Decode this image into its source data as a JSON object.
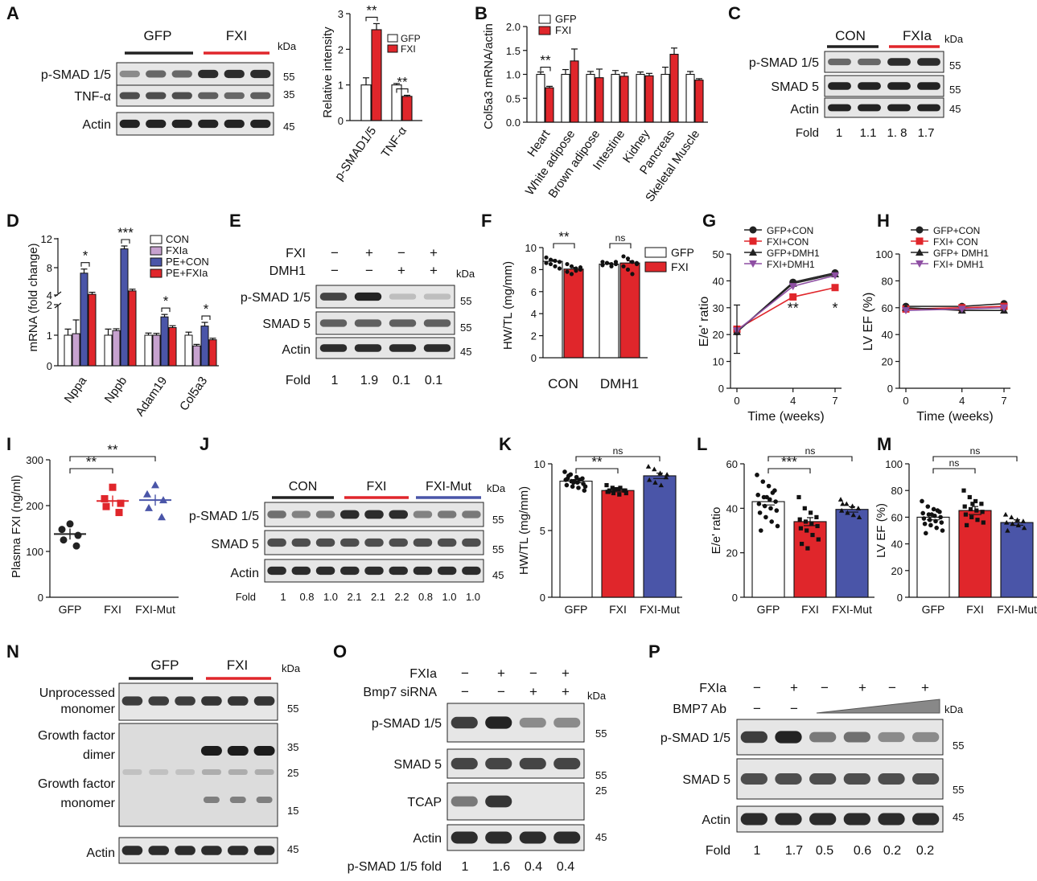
{
  "panels": {
    "A": {
      "letter": "A",
      "groups": [
        "GFP",
        "FXI"
      ],
      "group_colors": [
        "#222222",
        "#e0262b"
      ],
      "rows": [
        "p-SMAD 1/5",
        "TNF-α",
        "Actin"
      ],
      "kda_head": "kDa",
      "kda": [
        "55",
        "35",
        "45"
      ],
      "chart_data": {
        "type": "bar",
        "categories": [
          "p-SMAD1/5",
          "TNF-α"
        ],
        "series": [
          {
            "name": "GFP",
            "values": [
              1.0,
              1.0
            ],
            "err": [
              0.2,
              0.04
            ],
            "color": "#ffffff"
          },
          {
            "name": "FXI",
            "values": [
              2.55,
              0.68
            ],
            "err": [
              0.17,
              0.03
            ],
            "color": "#e0262b"
          }
        ],
        "ylabel": "Relative intensity",
        "ylim": [
          0,
          3
        ],
        "yticks": [
          "0",
          "1",
          "2",
          "3"
        ],
        "sig": [
          "**",
          "**"
        ]
      }
    },
    "B": {
      "letter": "B",
      "chart_data": {
        "type": "bar",
        "categories": [
          "Heart",
          "White adipose",
          "Brown adipose",
          "Intestine",
          "Kidney",
          "Pancreas",
          "Skeletal Muscle"
        ],
        "series": [
          {
            "name": "GFP",
            "values": [
              1.0,
              1.0,
              1.0,
              1.0,
              1.0,
              1.0,
              1.0
            ],
            "err": [
              0.05,
              0.1,
              0.06,
              0.08,
              0.05,
              0.15,
              0.06
            ],
            "color": "#ffffff"
          },
          {
            "name": "FXI",
            "values": [
              0.72,
              1.28,
              0.93,
              0.96,
              0.97,
              1.42,
              0.88
            ],
            "err": [
              0.03,
              0.25,
              0.18,
              0.07,
              0.05,
              0.13,
              0.03
            ],
            "color": "#e0262b"
          }
        ],
        "ylabel": "Col5a3 mRNA/actin",
        "ylim": [
          0,
          2.0
        ],
        "yticks": [
          "0.0",
          "0.5",
          "1.0",
          "1.5",
          "2.0"
        ],
        "sig": [
          "**",
          "",
          "",
          "",
          "",
          "",
          ""
        ]
      }
    },
    "C": {
      "letter": "C",
      "groups": [
        "CON",
        "FXIa"
      ],
      "group_colors": [
        "#222222",
        "#e0262b"
      ],
      "rows": [
        "p-SMAD 1/5",
        "SMAD 5",
        "Actin"
      ],
      "kda_head": "kDa",
      "kda": [
        "55",
        "55",
        "45"
      ],
      "fold_label": "Fold",
      "fold": [
        "1",
        "1.1",
        "1. 8",
        "1.7"
      ]
    },
    "D": {
      "letter": "D",
      "chart_data": {
        "type": "bar",
        "categories": [
          "Nppa",
          "Nppb",
          "Adam19",
          "Col5a3"
        ],
        "series": [
          {
            "name": "CON",
            "values": [
              1.0,
              1.0,
              1.0,
              1.0
            ],
            "err": [
              0.2,
              0.2,
              0.07,
              0.1
            ],
            "color": "#ffffff"
          },
          {
            "name": "FXIa",
            "values": [
              1.05,
              1.15,
              1.0,
              0.65
            ],
            "err": [
              0.45,
              0.06,
              0.06,
              0.05
            ],
            "color": "#c7a2cf"
          },
          {
            "name": "PE+CON",
            "values": [
              7.2,
              10.6,
              1.6,
              1.3
            ],
            "err": [
              0.6,
              0.4,
              0.08,
              0.12
            ],
            "color": "#4a55a8"
          },
          {
            "name": "PE+FXIa",
            "values": [
              4.1,
              4.6,
              1.25,
              0.85
            ],
            "err": [
              0.3,
              0.25,
              0.06,
              0.05
            ],
            "color": "#e0262b"
          }
        ],
        "ylabel": "mRNA (fold change)",
        "yticks": [
          "0",
          "1",
          "2",
          "4",
          "8",
          "12"
        ],
        "sig": [
          "*",
          "***",
          "*",
          "*"
        ]
      }
    },
    "E": {
      "letter": "E",
      "cond": [
        {
          "name": "FXI",
          "vals": [
            "−",
            "+",
            "−",
            "+"
          ]
        },
        {
          "name": "DMH1",
          "vals": [
            "−",
            "−",
            "+",
            "+"
          ]
        }
      ],
      "rows": [
        "p-SMAD 1/5",
        "SMAD 5",
        "Actin"
      ],
      "kda_head": "kDa",
      "kda": [
        "55",
        "55",
        "45"
      ],
      "fold_label": "Fold",
      "fold": [
        "1",
        "1.9",
        "0.1",
        "0.1"
      ]
    },
    "F": {
      "letter": "F",
      "chart_data": {
        "type": "bar",
        "categories": [
          "CON",
          "DMH1"
        ],
        "series": [
          {
            "name": "GFP",
            "values": [
              8.75,
              8.5
            ],
            "err": [
              0.15,
              0.1
            ],
            "color": "#ffffff"
          },
          {
            "name": "FXI",
            "values": [
              8.05,
              8.6
            ],
            "err": [
              0.15,
              0.2
            ],
            "color": "#e0262b"
          }
        ],
        "ylabel": "HW/TL (mg/mm)",
        "ylim": [
          0,
          10
        ],
        "yticks": [
          "0",
          "2",
          "4",
          "6",
          "8",
          "10"
        ],
        "sig": [
          "**",
          "ns"
        ]
      }
    },
    "G": {
      "letter": "G",
      "chart_data": {
        "type": "line",
        "x": [
          0,
          4,
          7
        ],
        "series": [
          {
            "name": "GFP+CON",
            "values": [
              21,
              39.5,
              43
            ],
            "color": "#222222",
            "marker": "circle"
          },
          {
            "name": "FXI+CON",
            "values": [
              22,
              34,
              37.5
            ],
            "color": "#e0262b",
            "marker": "square"
          },
          {
            "name": "GFP+DMH1",
            "values": [
              21,
              39,
              42.5
            ],
            "color": "#222222",
            "marker": "triangle"
          },
          {
            "name": "FXI+DMH1",
            "values": [
              21.5,
              38,
              42
            ],
            "color": "#8e4fa3",
            "marker": "triangle-down"
          }
        ],
        "xlabel": "Time (weeks)",
        "ylabel": "E/e' ratio",
        "ylim": [
          0,
          50
        ],
        "yticks": [
          "0",
          "10",
          "20",
          "30",
          "40",
          "50"
        ],
        "xticks": [
          "0",
          "4",
          "7"
        ],
        "sig": [
          "",
          "**",
          "*"
        ]
      }
    },
    "H": {
      "letter": "H",
      "chart_data": {
        "type": "line",
        "x": [
          0,
          4,
          7
        ],
        "series": [
          {
            "name": "GFP+CON",
            "values": [
              61,
              61,
              63
            ],
            "color": "#222222",
            "marker": "circle"
          },
          {
            "name": "FXI+ CON",
            "values": [
              59,
              60,
              61
            ],
            "color": "#e0262b",
            "marker": "square"
          },
          {
            "name": "GFP+ DMH1",
            "values": [
              60,
              58,
              58
            ],
            "color": "#222222",
            "marker": "triangle"
          },
          {
            "name": "FXI+ DMH1",
            "values": [
              58,
              59,
              60
            ],
            "color": "#8e4fa3",
            "marker": "triangle-down"
          }
        ],
        "xlabel": "Time (weeks)",
        "ylabel": "LV EF (%)",
        "ylim": [
          0,
          100
        ],
        "yticks": [
          "0",
          "20",
          "40",
          "60",
          "80",
          "100"
        ],
        "xticks": [
          "0",
          "4",
          "7"
        ]
      }
    },
    "I": {
      "letter": "I",
      "chart_data": {
        "type": "scatter",
        "categories": [
          "GFP",
          "FXI",
          "FXI-Mut"
        ],
        "means": [
          138,
          210,
          212
        ],
        "points": [
          [
            160,
            148,
            135,
            125,
            112
          ],
          [
            240,
            215,
            205,
            198,
            185
          ],
          [
            245,
            225,
            212,
            195,
            175
          ]
        ],
        "colors": [
          "#222222",
          "#e0262b",
          "#4a55a8"
        ],
        "ylabel": "Plasma FXI (ng/ml)",
        "ylim": [
          0,
          300
        ],
        "yticks": [
          "0",
          "100",
          "200",
          "300"
        ],
        "sig": [
          "**",
          "**"
        ]
      }
    },
    "J": {
      "letter": "J",
      "groups": [
        "CON",
        "FXI",
        "FXI-Mut"
      ],
      "group_colors": [
        "#222222",
        "#e0262b",
        "#4a55a8"
      ],
      "rows": [
        "p-SMAD 1/5",
        "SMAD 5",
        "Actin"
      ],
      "kda_head": "kDa",
      "kda": [
        "55",
        "55",
        "45"
      ],
      "fold_label": "Fold",
      "fold": [
        "1",
        "0.8",
        "1.0",
        "2.1",
        "2.1",
        "2.2",
        "0.8",
        "1.0",
        "1.0"
      ]
    },
    "K": {
      "letter": "K",
      "chart_data": {
        "type": "bar",
        "categories": [
          "GFP",
          "FXI",
          "FXI-Mut"
        ],
        "values": [
          8.7,
          8.0,
          9.1
        ],
        "err": [
          0.12,
          0.1,
          0.2
        ],
        "colors": [
          "#ffffff",
          "#e0262b",
          "#4a55a8"
        ],
        "ylabel": "HW/TL (mg/mm)",
        "ylim": [
          0,
          10
        ],
        "yticks": [
          "0",
          "5",
          "10"
        ],
        "sig": [
          "**",
          "ns"
        ]
      }
    },
    "L": {
      "letter": "L",
      "chart_data": {
        "type": "bar",
        "categories": [
          "GFP",
          "FXI",
          "FXI-Mut"
        ],
        "values": [
          43,
          34,
          39.5
        ],
        "err": [
          1.5,
          1.8,
          1.2
        ],
        "colors": [
          "#ffffff",
          "#e0262b",
          "#4a55a8"
        ],
        "ylabel": "E/e' ratio",
        "ylim": [
          0,
          60
        ],
        "yticks": [
          "0",
          "20",
          "40",
          "60"
        ],
        "sig": [
          "***",
          "ns"
        ]
      }
    },
    "M": {
      "letter": "M",
      "chart_data": {
        "type": "bar",
        "categories": [
          "GFP",
          "FXI",
          "FXI-Mut"
        ],
        "values": [
          60,
          65,
          56
        ],
        "err": [
          2,
          3,
          2
        ],
        "colors": [
          "#ffffff",
          "#e0262b",
          "#4a55a8"
        ],
        "ylabel": "LV EF (%)",
        "ylim": [
          0,
          100
        ],
        "yticks": [
          "0",
          "20",
          "40",
          "60",
          "80",
          "100"
        ],
        "sig": [
          "ns",
          "ns"
        ]
      }
    },
    "N": {
      "letter": "N",
      "groups": [
        "GFP",
        "FXI"
      ],
      "group_colors": [
        "#222222",
        "#e0262b"
      ],
      "rows": [
        "Unprocessed monomer",
        "Growth factor dimer",
        "Growth factor monomer",
        "Actin"
      ],
      "row_lines": [
        [
          "Unprocessed",
          "monomer"
        ],
        [
          "Growth factor",
          "dimer"
        ],
        [
          "Growth factor",
          "monomer"
        ],
        [
          "Actin"
        ]
      ],
      "kda_head": "kDa",
      "kda": [
        "55",
        "35",
        "25",
        "15",
        "45"
      ]
    },
    "O": {
      "letter": "O",
      "cond": [
        {
          "name": "FXIa",
          "vals": [
            "−",
            "+",
            "−",
            "+"
          ]
        },
        {
          "name": "Bmp7 siRNA",
          "vals": [
            "−",
            "−",
            "+",
            "+"
          ]
        }
      ],
      "rows": [
        "p-SMAD 1/5",
        "SMAD 5",
        "TCAP",
        "Actin"
      ],
      "kda_head": "kDa",
      "kda": [
        "55",
        "55",
        "25",
        "45"
      ],
      "fold_label": "p-SMAD 1/5  fold",
      "fold": [
        "1",
        "1.6",
        "0.4",
        "0.4"
      ]
    },
    "P": {
      "letter": "P",
      "cond": [
        {
          "name": "FXIa",
          "vals": [
            "−",
            "+",
            "−",
            "+",
            "−",
            "+"
          ]
        }
      ],
      "ab_label": "BMP7  Ab",
      "ab_vals": [
        "−",
        "−"
      ],
      "rows": [
        "p-SMAD 1/5",
        "SMAD 5",
        "Actin"
      ],
      "kda_head": "kDa",
      "kda": [
        "55",
        "55",
        "45"
      ],
      "fold_label": "Fold",
      "fold": [
        "1",
        "1.7",
        "0.5",
        "0.6",
        "0.2",
        "0.2"
      ]
    }
  }
}
